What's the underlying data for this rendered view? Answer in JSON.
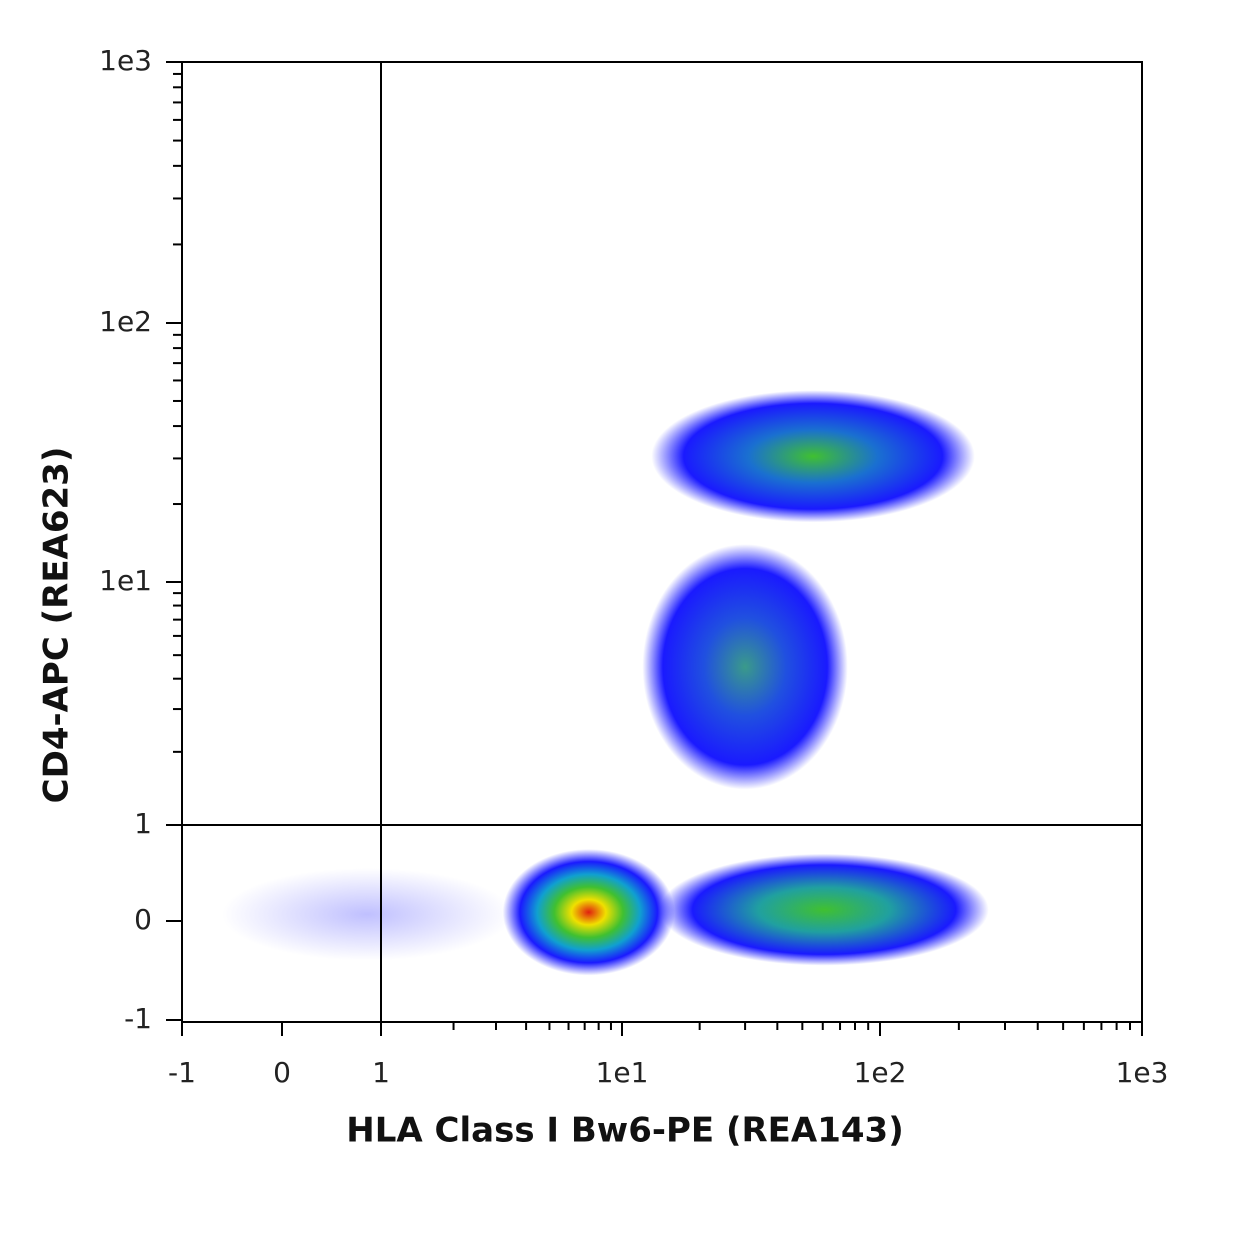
{
  "chart_data": {
    "type": "density",
    "xlabel": "HLA Class I Bw6-PE (REA143)",
    "ylabel": "CD4-APC (REA623)",
    "xlim": [
      -1,
      1000
    ],
    "ylim": [
      -1,
      1000
    ],
    "xticks": [
      -1,
      0,
      1,
      {
        "value": 10,
        "label": "1e1"
      },
      {
        "value": 100,
        "label": "1e2"
      },
      {
        "value": 1000,
        "label": "1e3"
      }
    ],
    "yticks": [
      -1,
      0,
      1,
      {
        "value": 10,
        "label": "1e1"
      },
      {
        "value": 100,
        "label": "1e2"
      },
      {
        "value": 1000,
        "label": "1e3"
      }
    ],
    "xminorticks": [
      2,
      3,
      4,
      5,
      6,
      7,
      8,
      9,
      20,
      30,
      40,
      50,
      60,
      70,
      80,
      90,
      200,
      300,
      400,
      500,
      600,
      700,
      800,
      900
    ],
    "yminorticks": [
      2,
      3,
      4,
      5,
      6,
      7,
      8,
      9,
      20,
      30,
      40,
      50,
      60,
      70,
      80,
      90,
      200,
      300,
      400,
      500,
      600,
      700,
      800,
      900
    ],
    "gates": {
      "x": 1,
      "y": 1
    },
    "clusters": [
      {
        "x": [
          -0.6,
          3.5
        ],
        "y": [
          -0.4,
          0.55
        ],
        "colors": [
          "#4a4aff"
        ],
        "opacity": 0.35
      },
      {
        "x": [
          14,
          260
        ],
        "y": [
          -0.45,
          0.7
        ],
        "colors": [
          "#40c030",
          "#20a0a0",
          "#1a1aff"
        ],
        "opacity": 1
      },
      {
        "x": [
          3.2,
          16
        ],
        "y": [
          -0.55,
          0.75
        ],
        "colors": [
          "#e02010",
          "#f0e000",
          "#40c030",
          "#10a0d0",
          "#1a1aff"
        ],
        "opacity": 1
      },
      {
        "x": [
          12,
          75
        ],
        "y": [
          1.4,
          14
        ],
        "colors": [
          "#3a9a8a",
          "#2050e0",
          "#1a1aff"
        ],
        "opacity": 1
      },
      {
        "x": [
          13,
          230
        ],
        "y": [
          17,
          55
        ],
        "colors": [
          "#40c030",
          "#1a70d0",
          "#1a1aff"
        ],
        "opacity": 1
      }
    ]
  }
}
